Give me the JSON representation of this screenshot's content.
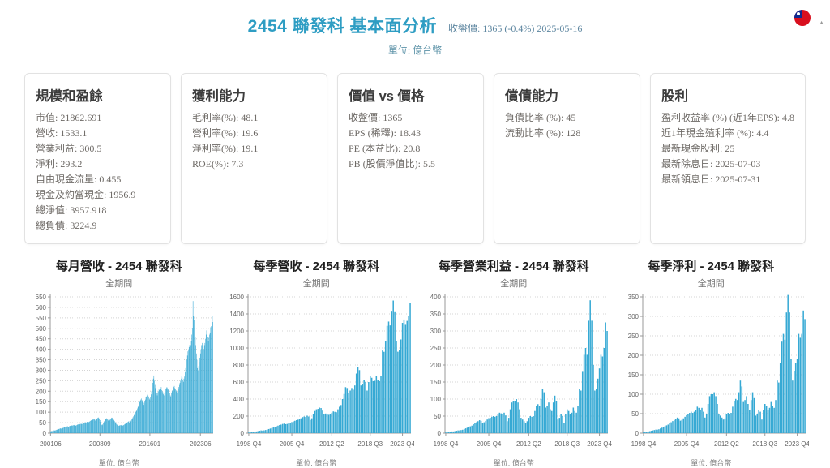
{
  "header": {
    "title": "2454 聯發科 基本面分析",
    "price_info": "收盤價: 1365 (-0.4%) 2025-05-16",
    "unit": "單位: 億台幣"
  },
  "icons": {
    "flag": "taiwan-flag",
    "scroll_arrow": "▲"
  },
  "colors": {
    "accent_title": "#2e9dc3",
    "bar": "#36a9d4",
    "grid": "#d4d4d4",
    "axis": "#9a9a9a",
    "tick_text": "#666666"
  },
  "cards": [
    {
      "title": "規模和盈餘",
      "items": [
        "市值: 21862.691",
        "營收: 1533.1",
        "營業利益: 300.5",
        "淨利: 293.2",
        "自由現金流量: 0.455",
        "現金及約當現金: 1956.9",
        "總淨值: 3957.918",
        "總負債: 3224.9"
      ]
    },
    {
      "title": "獲利能力",
      "items": [
        "毛利率(%): 48.1",
        "營利率(%): 19.6",
        "淨利率(%): 19.1",
        "ROE(%): 7.3"
      ]
    },
    {
      "title": "價值 vs 價格",
      "items": [
        "收盤價: 1365",
        "EPS (稀釋): 18.43",
        "PE (本益比): 20.8",
        "PB (股價淨值比): 5.5"
      ]
    },
    {
      "title": "償債能力",
      "items": [
        "負債比率 (%): 45",
        "流動比率 (%): 128"
      ]
    },
    {
      "title": "股利",
      "items": [
        "盈利收益率 (%) (近1年EPS): 4.8",
        "近1年現金殖利率 (%): 4.4",
        "最新現金股利: 25",
        "最新除息日: 2025-07-03",
        "最新領息日: 2025-07-31"
      ]
    }
  ],
  "chart_data": [
    {
      "type": "bar",
      "title": "每月營收 - 2454 聯發科",
      "subtitle": "全期間",
      "unit_label": "單位: 億台幣",
      "x_start": "2001-06",
      "x_end": "2025-04",
      "ylim": [
        0,
        650
      ],
      "y_step": 50,
      "grid": "dotted",
      "x_ticks": [
        {
          "label": "200106",
          "index": 0
        },
        {
          "label": "200809",
          "index": 87
        },
        {
          "label": "201601",
          "index": 175
        },
        {
          "label": "202306",
          "index": 264
        }
      ],
      "values": [
        8,
        9,
        10,
        10,
        11,
        12,
        13,
        13,
        12,
        14,
        15,
        16,
        17,
        18,
        19,
        20,
        21,
        22,
        23,
        21,
        22,
        24,
        25,
        26,
        27,
        28,
        30,
        31,
        30,
        32,
        33,
        30,
        31,
        33,
        34,
        35,
        34,
        36,
        37,
        36,
        38,
        37,
        39,
        36,
        35,
        37,
        38,
        40,
        41,
        42,
        43,
        44,
        42,
        44,
        45,
        43,
        44,
        46,
        47,
        48,
        50,
        51,
        52,
        50,
        53,
        54,
        55,
        52,
        54,
        56,
        58,
        60,
        62,
        63,
        65,
        64,
        66,
        68,
        64,
        60,
        63,
        67,
        70,
        73,
        75,
        72,
        68,
        62,
        54,
        46,
        40,
        38,
        42,
        48,
        53,
        58,
        63,
        66,
        69,
        71,
        68,
        64,
        60,
        58,
        61,
        65,
        69,
        72,
        74,
        72,
        69,
        65,
        61,
        57,
        53,
        48,
        44,
        41,
        38,
        36,
        35,
        36,
        37,
        38,
        37,
        39,
        40,
        36,
        37,
        39,
        41,
        43,
        45,
        47,
        49,
        51,
        53,
        55,
        57,
        50,
        52,
        56,
        60,
        65,
        70,
        75,
        80,
        85,
        90,
        95,
        100,
        105,
        110,
        118,
        125,
        132,
        140,
        148,
        155,
        160,
        165,
        158,
        150,
        140,
        135,
        145,
        155,
        160,
        170,
        175,
        180,
        185,
        178,
        172,
        165,
        160,
        170,
        185,
        200,
        220,
        240,
        260,
        275,
        250,
        230,
        215,
        205,
        190,
        180,
        195,
        200,
        210,
        205,
        215,
        210,
        220,
        205,
        200,
        195,
        185,
        180,
        190,
        200,
        210,
        215,
        220,
        215,
        210,
        205,
        200,
        190,
        180,
        175,
        190,
        200,
        205,
        210,
        220,
        225,
        215,
        210,
        205,
        200,
        195,
        190,
        210,
        220,
        230,
        240,
        250,
        260,
        270,
        265,
        255,
        245,
        260,
        270,
        290,
        310,
        330,
        350,
        370,
        390,
        400,
        410,
        420,
        400,
        420,
        440,
        470,
        500,
        630,
        560,
        540,
        500,
        460,
        420,
        380,
        350,
        310,
        300,
        320,
        340,
        360,
        380,
        400,
        420,
        430,
        420,
        410,
        400,
        420,
        430,
        450,
        470,
        490,
        505,
        460,
        440,
        455,
        470,
        480,
        505,
        510,
        480,
        560,
        530
      ]
    },
    {
      "type": "bar",
      "title": "每季營收 - 2454 聯發科",
      "subtitle": "全期間",
      "unit_label": "單位: 億台幣",
      "x_start": "1998 Q4",
      "x_end": "2025 Q1",
      "ylim": [
        0,
        1600
      ],
      "y_step": 200,
      "grid": "dotted",
      "x_ticks": [
        {
          "label": "1998 Q4",
          "index": 0
        },
        {
          "label": "2005 Q4",
          "index": 28
        },
        {
          "label": "2012 Q2",
          "index": 54
        },
        {
          "label": "2018 Q3",
          "index": 79
        },
        {
          "label": "2023 Q4",
          "index": 100
        }
      ],
      "values": [
        8,
        10,
        12,
        14,
        16,
        20,
        24,
        28,
        32,
        30,
        33,
        37,
        42,
        48,
        54,
        60,
        66,
        72,
        80,
        88,
        95,
        100,
        108,
        112,
        105,
        108,
        115,
        122,
        130,
        138,
        145,
        152,
        158,
        165,
        175,
        188,
        195,
        190,
        205,
        195,
        155,
        175,
        220,
        260,
        280,
        285,
        300,
        295,
        265,
        220,
        230,
        225,
        215,
        220,
        240,
        255,
        250,
        245,
        280,
        310,
        330,
        400,
        460,
        540,
        530,
        470,
        500,
        530,
        510,
        560,
        700,
        780,
        740,
        560,
        580,
        620,
        600,
        500,
        600,
        670,
        650,
        610,
        615,
        670,
        620,
        610,
        675,
        970,
        955,
        1080,
        1260,
        1310,
        1265,
        1427,
        1557,
        1421,
        1080,
        956,
        981,
        1100,
        1295,
        1334,
        1272,
        1318,
        1380,
        1533
      ]
    },
    {
      "type": "bar",
      "title": "每季營業利益 - 2454 聯發科",
      "subtitle": "全期間",
      "unit_label": "單位: 億台幣",
      "x_start": "1998 Q4",
      "x_end": "2025 Q1",
      "ylim": [
        0,
        400
      ],
      "y_step": 50,
      "grid": "dotted",
      "x_ticks": [
        {
          "label": "1998 Q4",
          "index": 0
        },
        {
          "label": "2005 Q4",
          "index": 28
        },
        {
          "label": "2012 Q2",
          "index": 54
        },
        {
          "label": "2018 Q3",
          "index": 79
        },
        {
          "label": "2023 Q4",
          "index": 100
        }
      ],
      "values": [
        2,
        3,
        3,
        4,
        5,
        5,
        6,
        7,
        8,
        8,
        9,
        10,
        12,
        14,
        16,
        18,
        20,
        22,
        26,
        29,
        32,
        35,
        38,
        36,
        30,
        32,
        36,
        40,
        44,
        45,
        48,
        50,
        48,
        50,
        55,
        60,
        58,
        55,
        60,
        52,
        35,
        45,
        70,
        90,
        95,
        95,
        100,
        90,
        70,
        45,
        40,
        35,
        30,
        35,
        45,
        50,
        48,
        50,
        65,
        80,
        85,
        80,
        100,
        130,
        120,
        75,
        80,
        90,
        70,
        65,
        90,
        110,
        95,
        40,
        45,
        55,
        50,
        30,
        55,
        70,
        65,
        55,
        60,
        75,
        65,
        60,
        80,
        130,
        125,
        180,
        230,
        250,
        230,
        330,
        390,
        330,
        200,
        125,
        130,
        160,
        190,
        230,
        225,
        250,
        325,
        300
      ]
    },
    {
      "type": "bar",
      "title": "每季淨利 - 2454 聯發科",
      "subtitle": "全期間",
      "unit_label": "單位: 億台幣",
      "x_start": "1998 Q4",
      "x_end": "2025 Q1",
      "ylim": [
        0,
        350
      ],
      "y_step": 50,
      "grid": "dotted",
      "x_ticks": [
        {
          "label": "1998 Q4",
          "index": 0
        },
        {
          "label": "2005 Q4",
          "index": 28
        },
        {
          "label": "2012 Q2",
          "index": 54
        },
        {
          "label": "2018 Q3",
          "index": 79
        },
        {
          "label": "2023 Q4",
          "index": 100
        }
      ],
      "values": [
        2,
        3,
        4,
        4,
        5,
        6,
        7,
        8,
        9,
        9,
        10,
        12,
        14,
        16,
        18,
        20,
        22,
        25,
        28,
        31,
        34,
        36,
        40,
        38,
        32,
        34,
        38,
        42,
        46,
        48,
        52,
        55,
        52,
        55,
        60,
        68,
        65,
        60,
        65,
        55,
        40,
        50,
        75,
        95,
        100,
        100,
        105,
        95,
        75,
        50,
        45,
        40,
        35,
        38,
        48,
        52,
        50,
        52,
        68,
        82,
        88,
        85,
        105,
        135,
        120,
        80,
        85,
        95,
        75,
        60,
        85,
        105,
        90,
        45,
        50,
        60,
        55,
        35,
        60,
        75,
        70,
        60,
        65,
        80,
        70,
        65,
        85,
        135,
        130,
        180,
        235,
        255,
        240,
        310,
        355,
        310,
        190,
        135,
        160,
        180,
        190,
        255,
        245,
        255,
        315,
        293
      ]
    }
  ]
}
